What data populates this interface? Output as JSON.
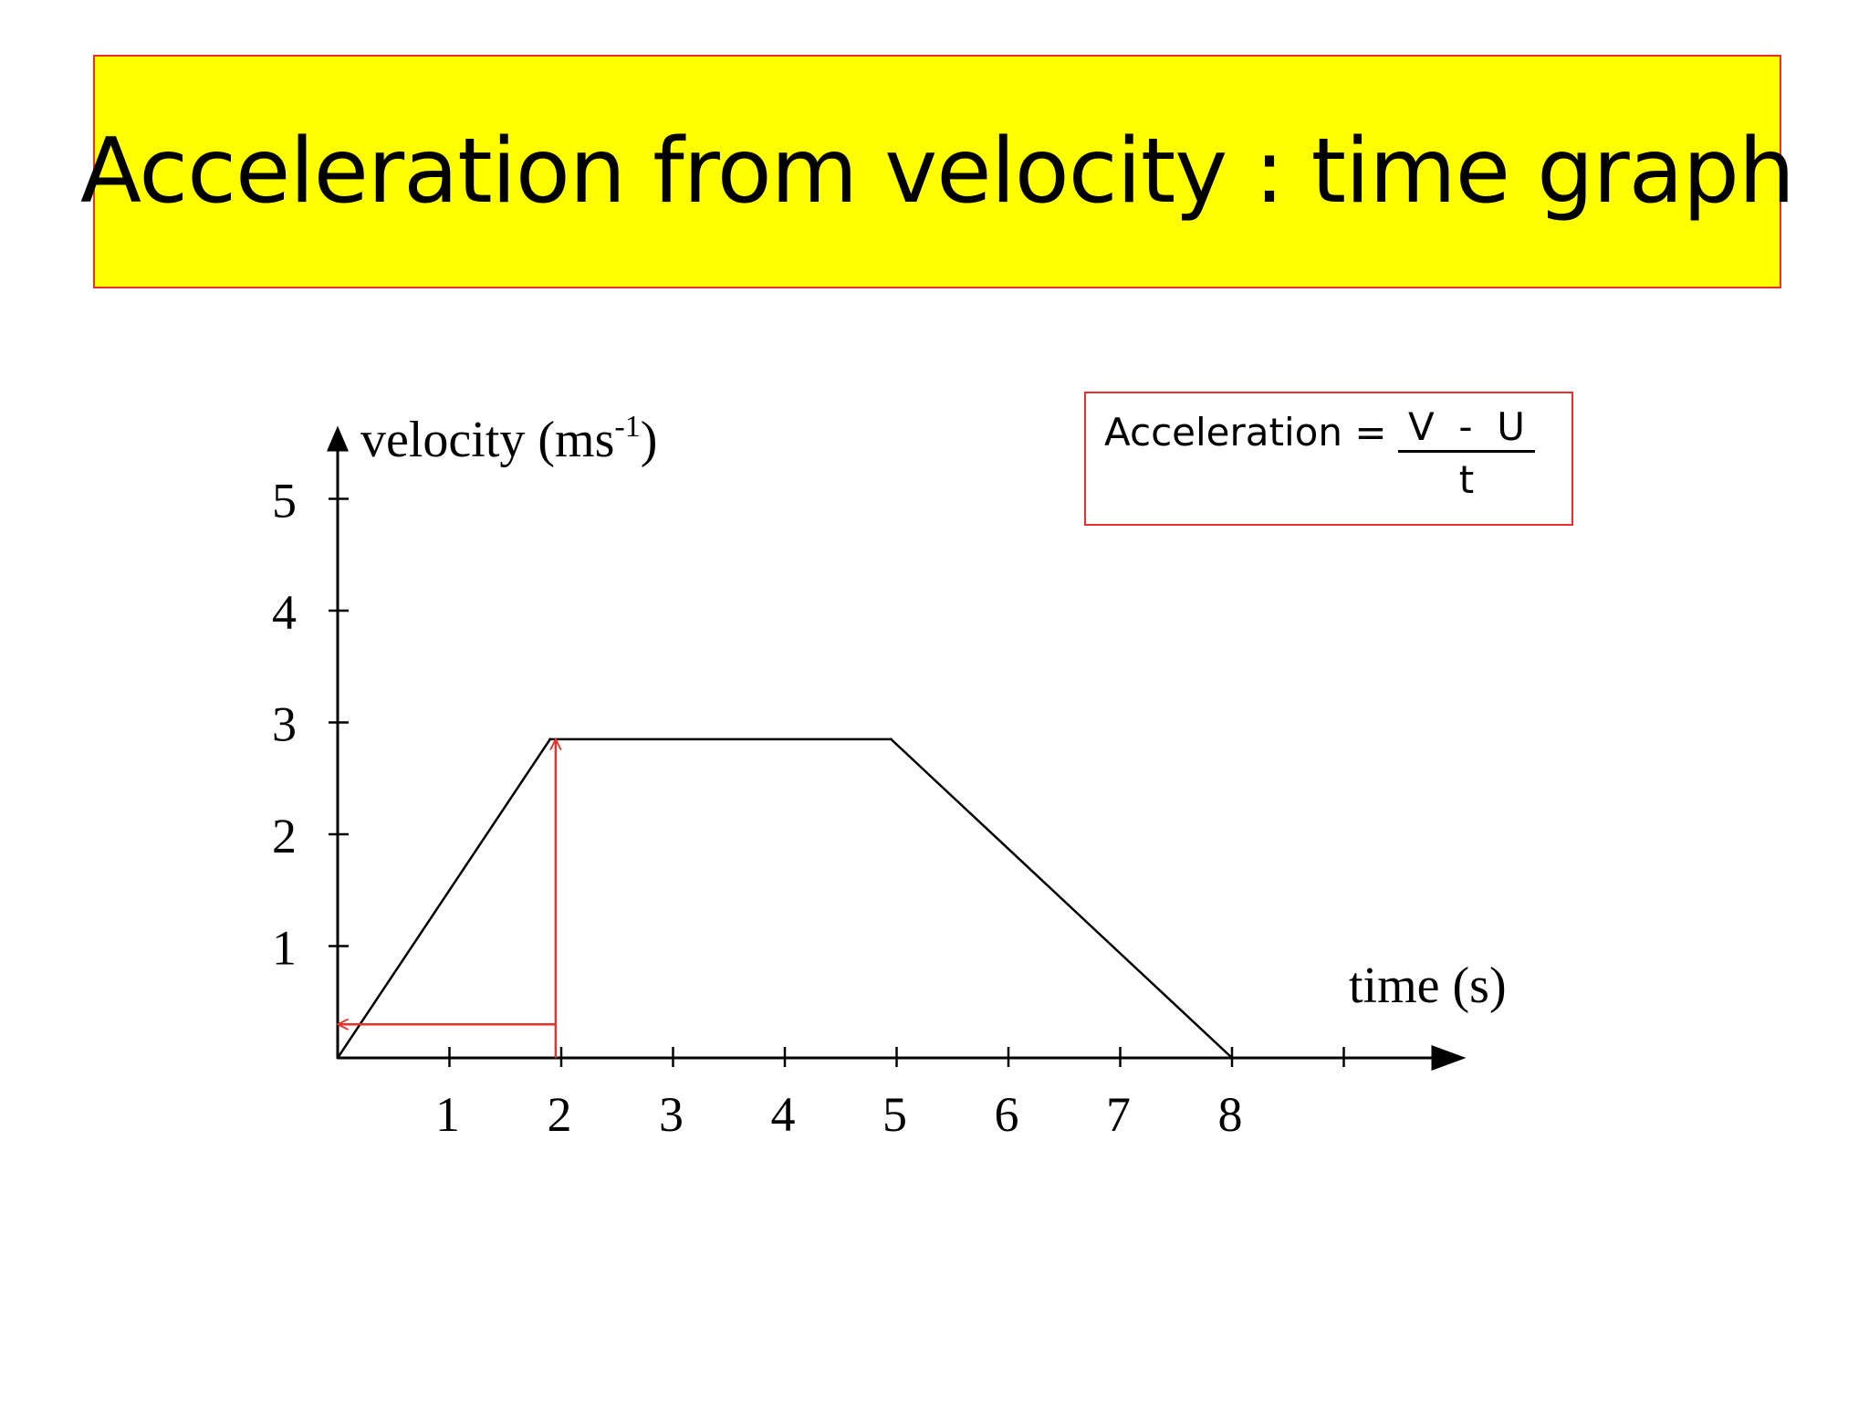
{
  "slide": {
    "title": "Acceleration from velocity : time graph"
  },
  "formula": {
    "label": "Acceleration =",
    "numerator": "V  -  U",
    "denominator": "t"
  },
  "chart_data": {
    "type": "line",
    "xlabel": "time (s)",
    "ylabel": "velocity (ms-1)",
    "ylabel_main": "velocity (ms",
    "ylabel_sup": "-1",
    "ylabel_end": ")",
    "x_ticks": [
      1,
      2,
      3,
      4,
      5,
      6,
      7,
      8
    ],
    "x_ticks_unlabeled": [
      9
    ],
    "y_ticks": [
      1,
      2,
      3,
      4,
      5
    ],
    "xlim": [
      0,
      9.8
    ],
    "ylim": [
      0,
      5.4
    ],
    "series": [
      {
        "points": [
          [
            0,
            0
          ],
          [
            1.9,
            2.85
          ],
          [
            4.95,
            2.85
          ],
          [
            8,
            0
          ]
        ],
        "color": "#000000"
      }
    ],
    "annotations": [
      {
        "type": "arrow",
        "from": [
          1.95,
          0
        ],
        "to": [
          1.95,
          2.85
        ],
        "color": "#e8302c"
      },
      {
        "type": "arrow",
        "from": [
          1.95,
          0.3
        ],
        "to": [
          0,
          0.3
        ],
        "color": "#e8302c"
      }
    ],
    "grid": false,
    "legend": "none"
  }
}
